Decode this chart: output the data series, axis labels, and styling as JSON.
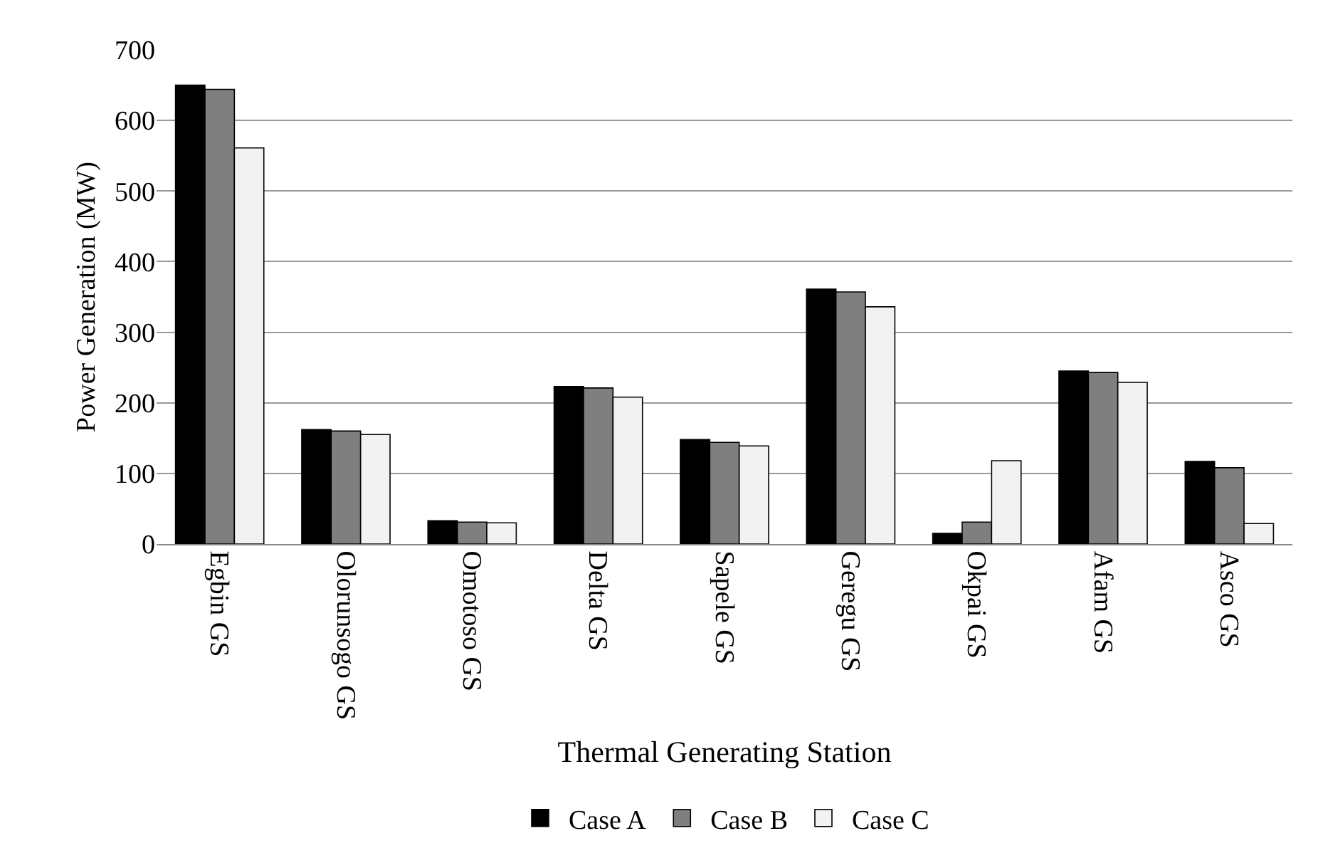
{
  "chart_data": {
    "type": "bar",
    "xlabel": "Thermal Generating Station",
    "ylabel": "Power Generation (MW)",
    "categories": [
      "Egbin GS",
      "Olorunsogo GS",
      "Omotoso GS",
      "Delta GS",
      "Sapele GS",
      "Geregu GS",
      "Okpai GS",
      "Afam GS",
      "Asco GS"
    ],
    "series": [
      {
        "name": "Case A",
        "color": "#000000",
        "values": [
          650,
          162,
          33,
          223,
          148,
          361,
          15,
          245,
          117
        ]
      },
      {
        "name": "Case B",
        "color": "#7f7f7f",
        "values": [
          644,
          160,
          31,
          221,
          144,
          357,
          31,
          243,
          108
        ]
      },
      {
        "name": "Case C",
        "color": "#f2f2f2",
        "values": [
          561,
          155,
          30,
          208,
          139,
          336,
          118,
          229,
          29
        ]
      }
    ],
    "ylim": [
      0,
      700
    ],
    "yticks": [
      0,
      100,
      200,
      300,
      400,
      500,
      600,
      700
    ],
    "grid": "y",
    "legend": "bottom"
  }
}
